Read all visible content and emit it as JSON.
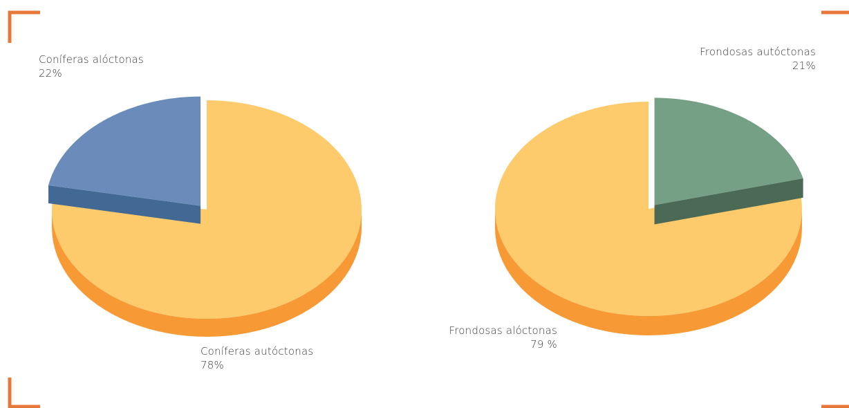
{
  "colors": {
    "corner_marks": "#e8783a",
    "pie_main_top": "#fdca6c",
    "pie_main_side": "#f79a35",
    "coniferas_aloctonas_top": "#6b8cba",
    "coniferas_aloctonas_side": "#426894",
    "frondosas_autoctonas_top": "#75a085",
    "frondosas_autoctonas_side": "#4b6a55",
    "label_text": "#3a3a3a"
  },
  "chart_data": [
    {
      "type": "pie",
      "style": "3d-exploded",
      "slices": [
        {
          "label": "Coníferas alóctonas",
          "value": 22,
          "value_text": "22%",
          "color": "#6b8cba",
          "exploded": true
        },
        {
          "label": "Coníferas autóctonas",
          "value": 78,
          "value_text": "78%",
          "color": "#fdca6c",
          "exploded": false
        }
      ]
    },
    {
      "type": "pie",
      "style": "3d-exploded",
      "slices": [
        {
          "label": "Frondosas autóctonas",
          "value": 21,
          "value_text": "21%",
          "color": "#75a085",
          "exploded": true
        },
        {
          "label": "Frondosas alóctonas",
          "value": 79,
          "value_text": "79 %",
          "color": "#fdca6c",
          "exploded": false
        }
      ]
    }
  ]
}
